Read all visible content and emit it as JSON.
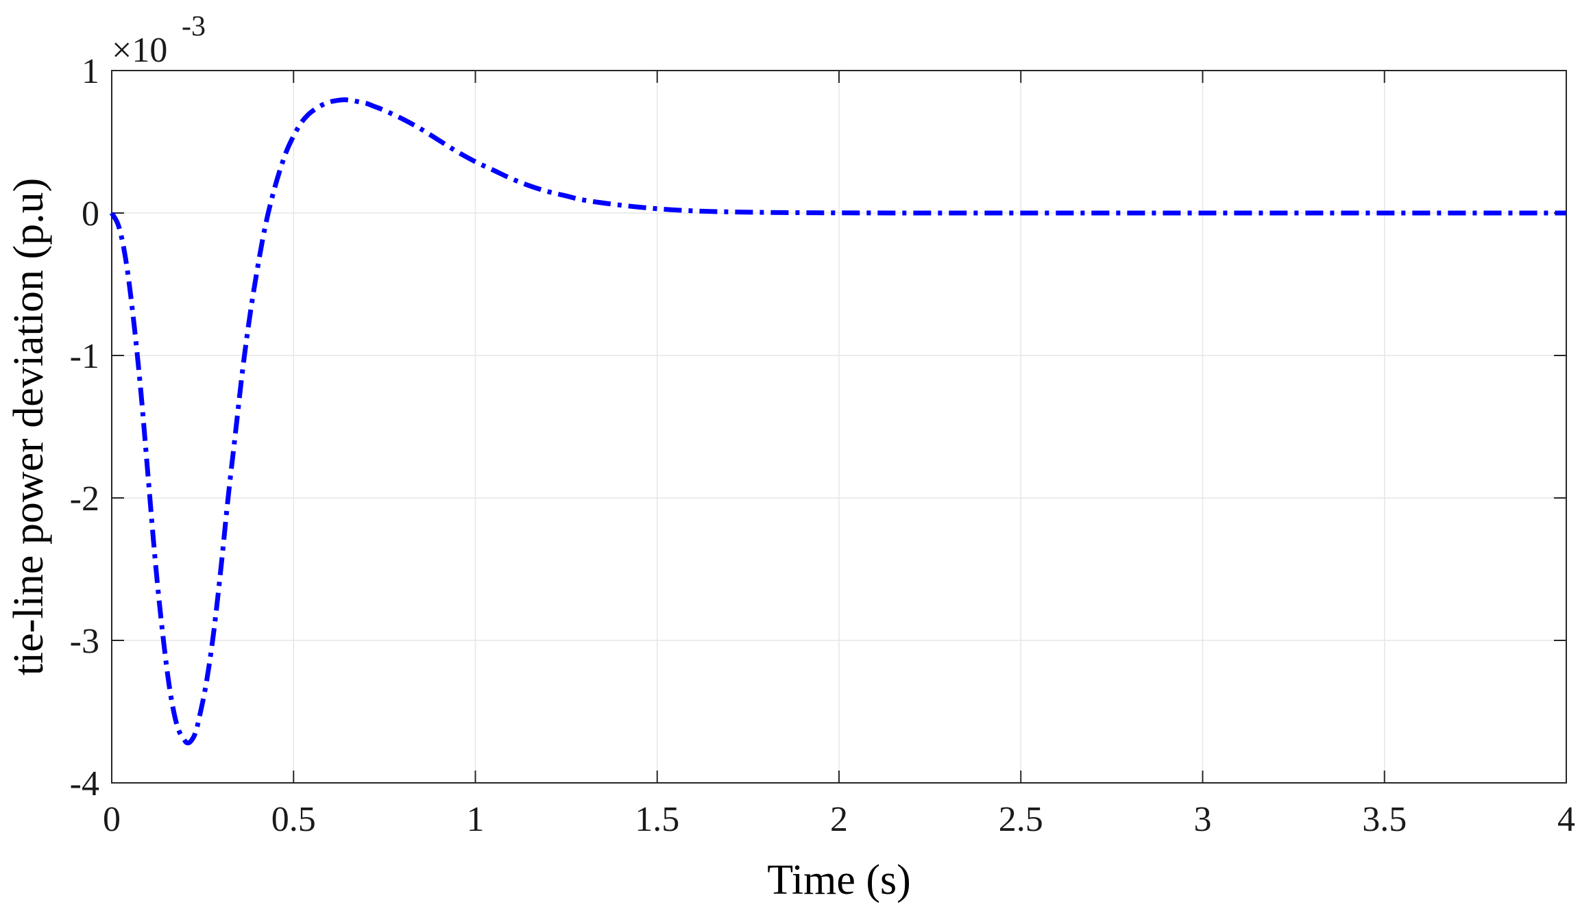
{
  "chart_data": {
    "type": "line",
    "xlabel": "Time (s)",
    "ylabel": "tie-line power deviation (p.u)",
    "y_exponent_prefix": "×10",
    "y_exponent_power": "-3",
    "xlim": [
      0,
      4
    ],
    "ylim": [
      -4,
      1
    ],
    "x_ticks": [
      0,
      0.5,
      1,
      1.5,
      2,
      2.5,
      3,
      3.5,
      4
    ],
    "x_tick_labels": [
      "0",
      "0.5",
      "1",
      "1.5",
      "2",
      "2.5",
      "3",
      "3.5",
      "4"
    ],
    "y_ticks": [
      -4,
      -3,
      -2,
      -1,
      0,
      1
    ],
    "y_tick_labels": [
      "-4",
      "-3",
      "-2",
      "-1",
      "0",
      "1"
    ],
    "grid": true,
    "box": true,
    "line_color": "#0000ff",
    "line_style": "dash-dot",
    "series": [
      {
        "x": [
          0,
          0.02,
          0.04,
          0.06,
          0.08,
          0.1,
          0.12,
          0.14,
          0.16,
          0.18,
          0.2,
          0.21,
          0.22,
          0.23,
          0.24,
          0.26,
          0.28,
          0.3,
          0.32,
          0.34,
          0.36,
          0.38,
          0.4,
          0.42,
          0.44,
          0.46,
          0.48,
          0.5,
          0.52,
          0.54,
          0.56,
          0.58,
          0.6,
          0.62,
          0.64,
          0.66,
          0.68,
          0.7,
          0.72,
          0.75,
          0.8,
          0.85,
          0.9,
          0.95,
          1.0,
          1.05,
          1.1,
          1.15,
          1.2,
          1.25,
          1.3,
          1.4,
          1.5,
          1.6,
          1.7,
          1.8,
          1.9,
          2.0,
          2.2,
          2.5,
          3.0,
          3.5,
          4.0
        ],
        "y": [
          0,
          -0.1,
          -0.35,
          -0.75,
          -1.25,
          -1.85,
          -2.45,
          -2.95,
          -3.35,
          -3.6,
          -3.7,
          -3.72,
          -3.7,
          -3.65,
          -3.55,
          -3.3,
          -2.95,
          -2.5,
          -2.0,
          -1.55,
          -1.1,
          -0.72,
          -0.4,
          -0.12,
          0.1,
          0.28,
          0.43,
          0.54,
          0.63,
          0.69,
          0.73,
          0.76,
          0.78,
          0.79,
          0.795,
          0.79,
          0.78,
          0.77,
          0.75,
          0.72,
          0.66,
          0.59,
          0.51,
          0.43,
          0.36,
          0.3,
          0.24,
          0.19,
          0.15,
          0.12,
          0.09,
          0.055,
          0.03,
          0.015,
          0.008,
          0.004,
          0.002,
          0.001,
          0,
          0,
          0,
          0,
          0
        ]
      }
    ]
  }
}
